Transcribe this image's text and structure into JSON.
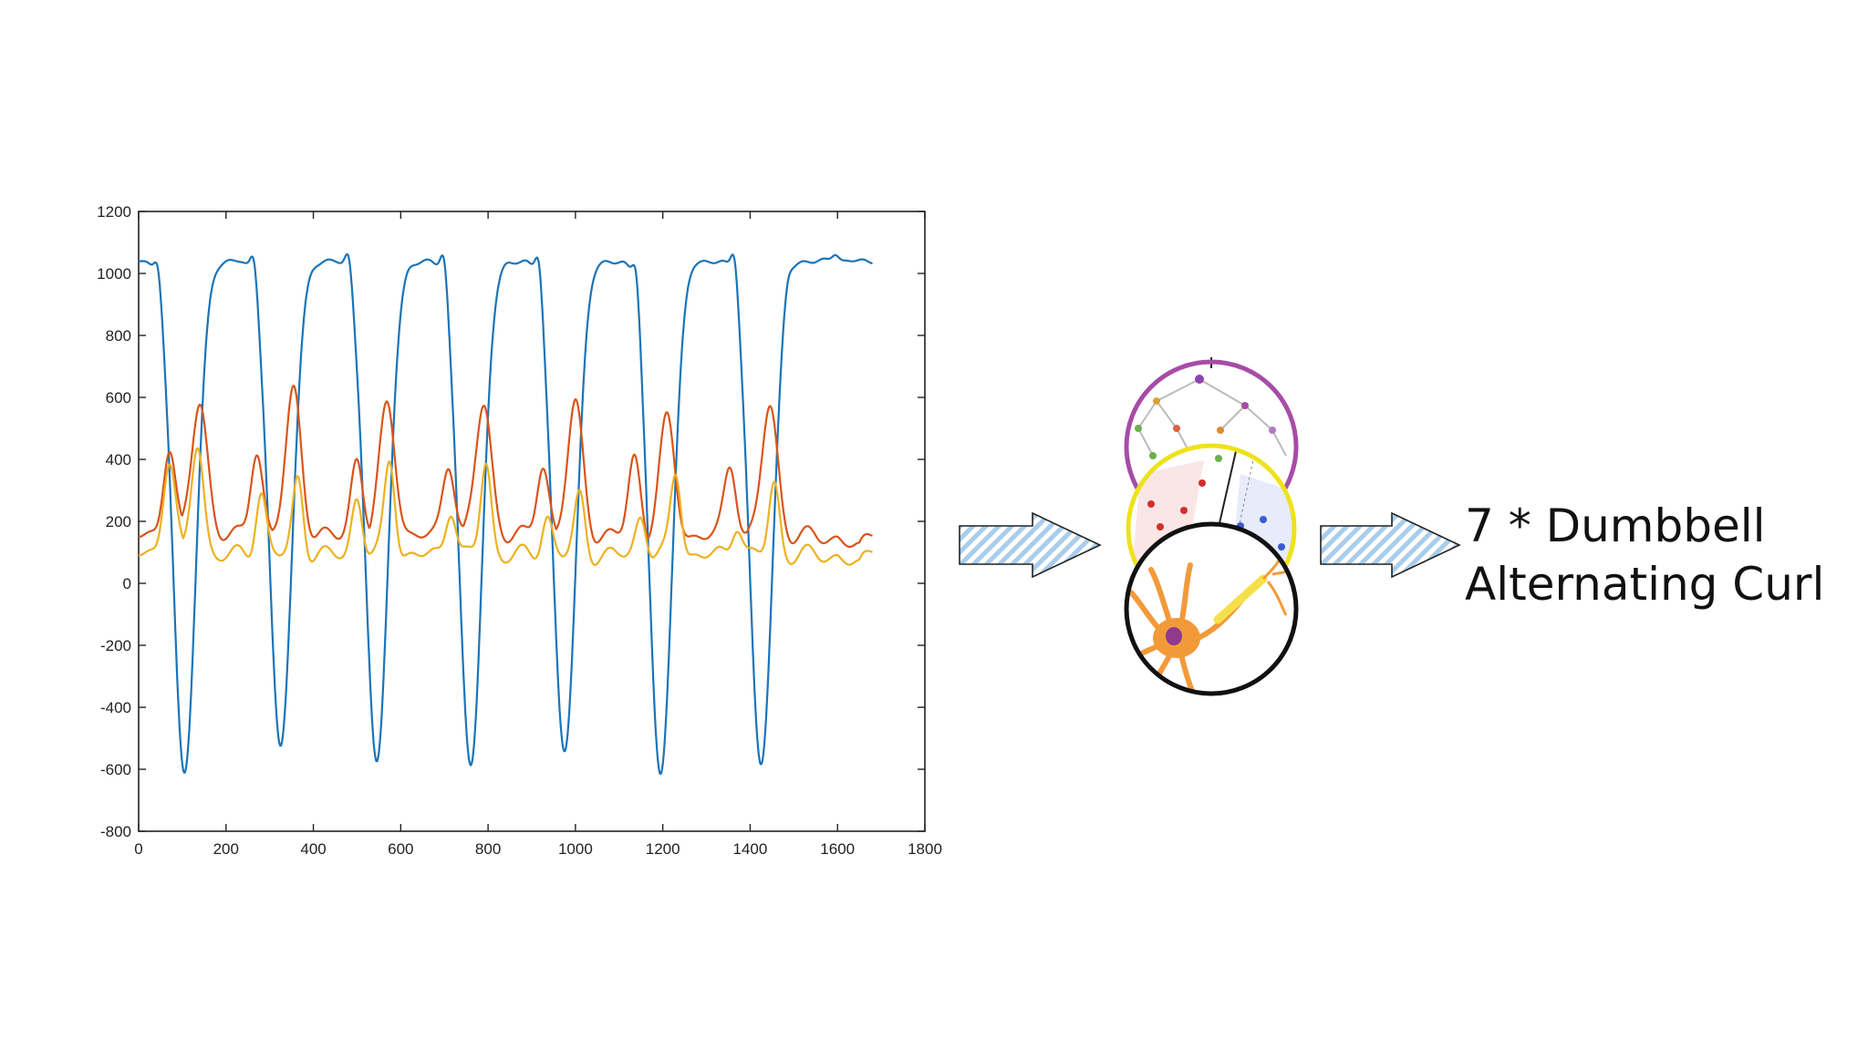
{
  "chart_data": {
    "type": "line",
    "xlim": [
      0,
      1800
    ],
    "ylim": [
      -800,
      1200
    ],
    "x_ticks": [
      0,
      200,
      400,
      600,
      800,
      1000,
      1200,
      1400,
      1600,
      1800
    ],
    "y_ticks": [
      -800,
      -600,
      -400,
      -200,
      0,
      200,
      400,
      600,
      800,
      1000,
      1200
    ],
    "grid": false,
    "x_end": 1680,
    "series": [
      {
        "color": "#1a74b8",
        "baseline": 1040,
        "dips": [
          {
            "x": 105,
            "y": -610,
            "w": 26
          },
          {
            "x": 325,
            "y": -520,
            "w": 26
          },
          {
            "x": 545,
            "y": -570,
            "w": 26
          },
          {
            "x": 760,
            "y": -590,
            "w": 26
          },
          {
            "x": 975,
            "y": -550,
            "w": 26
          },
          {
            "x": 1195,
            "y": -620,
            "w": 26
          },
          {
            "x": 1425,
            "y": -590,
            "w": 26
          }
        ],
        "bumps": [
          {
            "x": 45,
            "y": 1130,
            "w": 8
          },
          {
            "x": 265,
            "y": 1145,
            "w": 8
          },
          {
            "x": 482,
            "y": 1130,
            "w": 8
          },
          {
            "x": 700,
            "y": 1150,
            "w": 8
          },
          {
            "x": 917,
            "y": 1160,
            "w": 8
          },
          {
            "x": 1140,
            "y": 1165,
            "w": 8
          },
          {
            "x": 1365,
            "y": 1155,
            "w": 8
          },
          {
            "x": 1485,
            "y": 1070,
            "w": 8
          },
          {
            "x": 1595,
            "y": 1065,
            "w": 8
          }
        ]
      },
      {
        "color": "#d9541a",
        "baseline": 150,
        "peaks": [
          {
            "x": 70,
            "y": 450,
            "w": 14
          },
          {
            "x": 140,
            "y": 590,
            "w": 18
          },
          {
            "x": 270,
            "y": 440,
            "w": 14
          },
          {
            "x": 355,
            "y": 620,
            "w": 18
          },
          {
            "x": 500,
            "y": 410,
            "w": 14
          },
          {
            "x": 570,
            "y": 580,
            "w": 18
          },
          {
            "x": 710,
            "y": 400,
            "w": 14
          },
          {
            "x": 790,
            "y": 580,
            "w": 18
          },
          {
            "x": 925,
            "y": 390,
            "w": 14
          },
          {
            "x": 1000,
            "y": 570,
            "w": 18
          },
          {
            "x": 1135,
            "y": 410,
            "w": 14
          },
          {
            "x": 1210,
            "y": 520,
            "w": 18
          },
          {
            "x": 1355,
            "y": 390,
            "w": 14
          },
          {
            "x": 1445,
            "y": 570,
            "w": 18
          }
        ]
      },
      {
        "color": "#edb120",
        "baseline": 90,
        "peaks": [
          {
            "x": 70,
            "y": 410,
            "w": 14
          },
          {
            "x": 135,
            "y": 450,
            "w": 14
          },
          {
            "x": 280,
            "y": 300,
            "w": 12
          },
          {
            "x": 365,
            "y": 340,
            "w": 12
          },
          {
            "x": 500,
            "y": 280,
            "w": 12
          },
          {
            "x": 575,
            "y": 400,
            "w": 12
          },
          {
            "x": 715,
            "y": 250,
            "w": 12
          },
          {
            "x": 795,
            "y": 390,
            "w": 12
          },
          {
            "x": 935,
            "y": 220,
            "w": 12
          },
          {
            "x": 1010,
            "y": 280,
            "w": 12
          },
          {
            "x": 1150,
            "y": 220,
            "w": 12
          },
          {
            "x": 1230,
            "y": 360,
            "w": 12
          },
          {
            "x": 1370,
            "y": 200,
            "w": 12
          },
          {
            "x": 1455,
            "y": 320,
            "w": 12
          }
        ]
      }
    ]
  },
  "diagram": {
    "circles": [
      {
        "color": "#a64ca6"
      },
      {
        "color": "#eee21a"
      },
      {
        "color": "#111111"
      }
    ],
    "arrow_fill": "#a9cdea"
  },
  "result": {
    "line1": "7 * Dumbbell",
    "line2": "Alternating Curl"
  }
}
